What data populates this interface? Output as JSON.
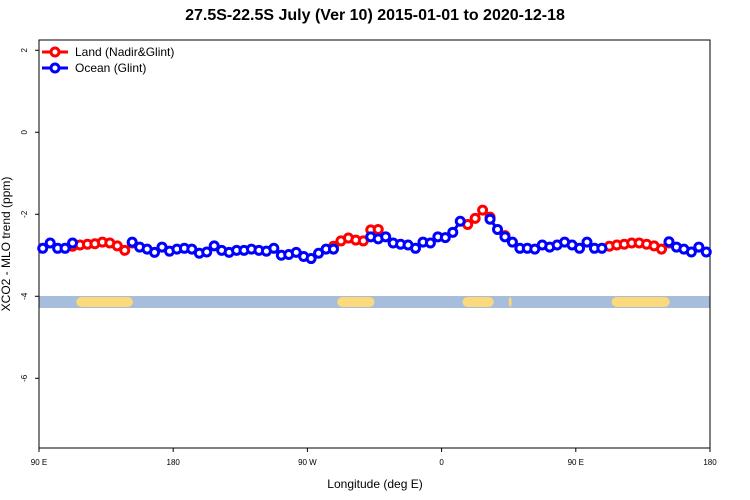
{
  "chart_data": {
    "type": "line",
    "title": "27.5S-22.5S July (Ver 10)   2015-01-01 to 2020-12-18",
    "x_label": "Longitude (deg E)",
    "y_label": "XCO2 - MLO trend (ppm)",
    "xlim": [
      90,
      540
    ],
    "ylim": [
      -7.7,
      2.25
    ],
    "xticks": [
      {
        "value": 90,
        "label": "90 E"
      },
      180,
      {
        "value": 270,
        "label": "90 W"
      },
      {
        "value": 360,
        "label": "0"
      },
      {
        "value": 450,
        "label": "90 E"
      },
      {
        "value": 540,
        "label": "180"
      }
    ],
    "yticks": [
      -6,
      -4,
      -2,
      0,
      2
    ],
    "legend": "top-left",
    "land_mask_color": "#fcd97a",
    "ocean_mask_color": "#a6bddb",
    "land_mask": [
      [
        115,
        153
      ],
      [
        290,
        315
      ],
      [
        374,
        395
      ],
      [
        405,
        407
      ],
      [
        474,
        513
      ]
    ],
    "x": [
      92.5,
      97.5,
      102.5,
      107.5,
      112.5,
      117.5,
      122.5,
      127.5,
      132.5,
      137.5,
      142.5,
      147.5,
      152.5,
      157.5,
      162.5,
      167.5,
      172.5,
      177.5,
      182.5,
      187.5,
      192.5,
      197.5,
      202.5,
      207.5,
      212.5,
      217.5,
      222.5,
      227.5,
      232.5,
      237.5,
      242.5,
      247.5,
      252.5,
      257.5,
      262.5,
      267.5,
      272.5,
      277.5,
      282.5,
      287.5,
      292.5,
      297.5,
      302.5,
      307.5,
      312.5,
      317.5,
      322.5,
      327.5,
      332.5,
      337.5,
      342.5,
      347.5,
      352.5,
      357.5,
      362.5,
      367.5,
      372.5,
      377.5,
      382.5,
      387.5,
      392.5,
      397.5,
      402.5,
      407.5,
      412.5,
      417.5,
      422.5,
      427.5,
      432.5,
      437.5,
      442.5,
      447.5,
      452.5,
      457.5,
      462.5,
      467.5,
      472.5,
      477.5,
      482.5,
      487.5,
      492.5,
      497.5,
      502.5,
      507.5,
      512.5,
      517.5,
      522.5,
      527.5,
      532.5,
      537.5
    ],
    "series": [
      {
        "name": "Land (Nadir&Glint)",
        "color": "#ff0000",
        "values": [
          null,
          null,
          null,
          null,
          -2.78,
          -2.75,
          -2.73,
          -2.72,
          -2.68,
          -2.7,
          -2.77,
          -2.88,
          -2.7,
          null,
          null,
          null,
          null,
          null,
          null,
          null,
          null,
          null,
          null,
          null,
          null,
          null,
          null,
          null,
          null,
          null,
          null,
          null,
          null,
          null,
          null,
          null,
          null,
          null,
          null,
          -2.78,
          -2.65,
          -2.58,
          -2.63,
          -2.65,
          -2.38,
          -2.37,
          null,
          null,
          null,
          null,
          null,
          null,
          null,
          null,
          null,
          null,
          null,
          -2.25,
          -2.1,
          -1.9,
          -2.07,
          null,
          -2.52,
          null,
          null,
          null,
          null,
          null,
          null,
          null,
          null,
          null,
          null,
          null,
          null,
          null,
          -2.78,
          -2.75,
          -2.73,
          -2.7,
          -2.7,
          -2.73,
          -2.77,
          -2.85,
          -2.7,
          null,
          null,
          null,
          null,
          null
        ]
      },
      {
        "name": "Ocean (Glint)",
        "color": "#0000ff",
        "values": [
          -2.83,
          -2.7,
          -2.83,
          -2.83,
          -2.7,
          null,
          null,
          null,
          null,
          null,
          null,
          null,
          -2.68,
          -2.8,
          -2.85,
          -2.93,
          -2.8,
          -2.9,
          -2.85,
          -2.83,
          -2.85,
          -2.95,
          -2.92,
          -2.77,
          -2.88,
          -2.93,
          -2.88,
          -2.88,
          -2.85,
          -2.88,
          -2.9,
          -2.83,
          -3.0,
          -2.98,
          -2.93,
          -3.03,
          -3.08,
          -2.95,
          -2.85,
          -2.85,
          null,
          null,
          null,
          null,
          -2.55,
          -2.6,
          -2.55,
          -2.7,
          -2.73,
          -2.75,
          -2.83,
          -2.68,
          -2.7,
          -2.55,
          -2.57,
          -2.44,
          -2.17,
          null,
          null,
          null,
          -2.12,
          -2.37,
          -2.55,
          -2.68,
          -2.83,
          -2.83,
          -2.85,
          -2.75,
          -2.8,
          -2.75,
          -2.68,
          -2.75,
          -2.83,
          -2.68,
          -2.83,
          -2.83,
          null,
          null,
          null,
          null,
          null,
          null,
          null,
          null,
          -2.67,
          -2.8,
          -2.85,
          -2.92,
          -2.8,
          -2.92
        ]
      }
    ]
  }
}
